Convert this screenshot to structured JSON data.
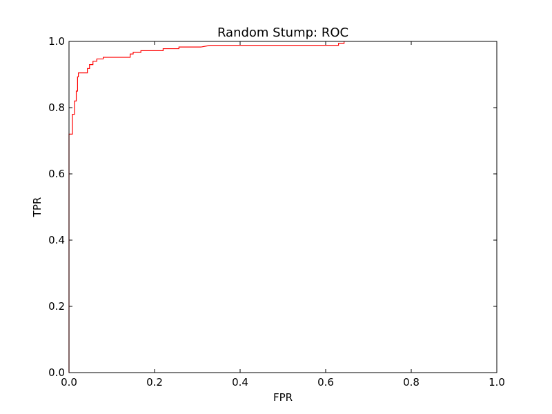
{
  "chart_data": {
    "type": "line",
    "title": "Random Stump: ROC",
    "xlabel": "FPR",
    "ylabel": "TPR",
    "xlim": [
      0.0,
      1.0
    ],
    "ylim": [
      0.0,
      1.0
    ],
    "x_ticks": [
      "0.0",
      "0.2",
      "0.4",
      "0.6",
      "0.8",
      "1.0"
    ],
    "y_ticks": [
      "0.0",
      "0.2",
      "0.4",
      "0.6",
      "0.8",
      "1.0"
    ],
    "grid": false,
    "series": [
      {
        "color": "#ff0000",
        "points": [
          [
            0.0,
            0.0
          ],
          [
            0.0,
            0.72
          ],
          [
            0.008,
            0.72
          ],
          [
            0.008,
            0.78
          ],
          [
            0.013,
            0.78
          ],
          [
            0.013,
            0.82
          ],
          [
            0.017,
            0.82
          ],
          [
            0.017,
            0.85
          ],
          [
            0.02,
            0.85
          ],
          [
            0.02,
            0.893
          ],
          [
            0.022,
            0.893
          ],
          [
            0.022,
            0.905
          ],
          [
            0.043,
            0.905
          ],
          [
            0.043,
            0.918
          ],
          [
            0.048,
            0.918
          ],
          [
            0.048,
            0.93
          ],
          [
            0.056,
            0.93
          ],
          [
            0.056,
            0.94
          ],
          [
            0.065,
            0.94
          ],
          [
            0.065,
            0.947
          ],
          [
            0.08,
            0.947
          ],
          [
            0.08,
            0.952
          ],
          [
            0.143,
            0.952
          ],
          [
            0.143,
            0.962
          ],
          [
            0.15,
            0.962
          ],
          [
            0.15,
            0.967
          ],
          [
            0.168,
            0.967
          ],
          [
            0.168,
            0.972
          ],
          [
            0.22,
            0.972
          ],
          [
            0.22,
            0.978
          ],
          [
            0.257,
            0.978
          ],
          [
            0.257,
            0.983
          ],
          [
            0.308,
            0.983
          ],
          [
            0.33,
            0.988
          ],
          [
            0.63,
            0.988
          ],
          [
            0.63,
            0.994
          ],
          [
            0.643,
            0.994
          ],
          [
            0.643,
            1.0
          ]
        ]
      }
    ]
  }
}
